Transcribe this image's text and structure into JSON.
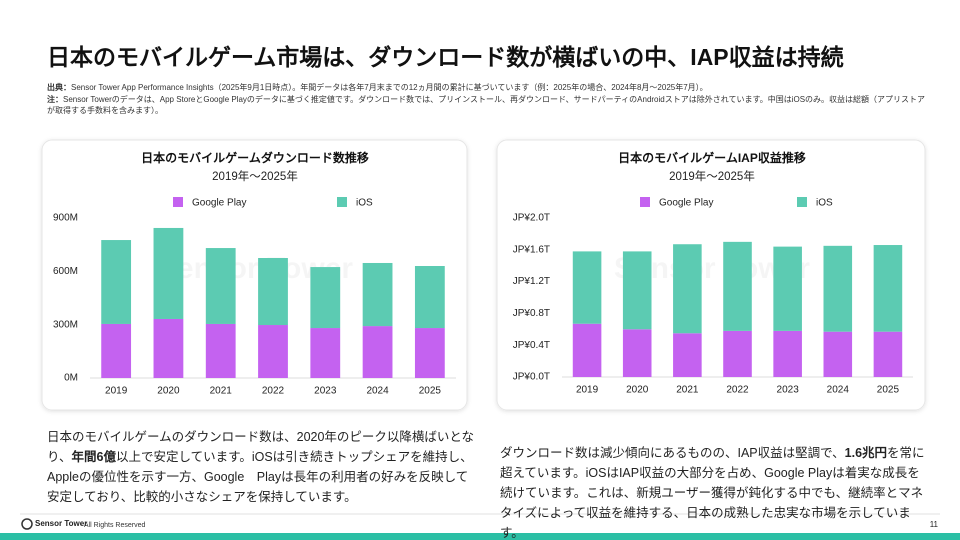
{
  "header": {
    "title": "日本のモバイルゲーム市場は、ダウンロード数が横ばいの中、IAP収益は持続",
    "source_label": "出典：",
    "source_text": "Sensor Tower App Performance Insights（2025年9月1日時点）。年間データは各年7月末までの12ヵ月間の累計に基づいています（例：2025年の場合、2024年8月～2025年7月）。",
    "note_label": "注：",
    "note_text": "Sensor Towerのデータは、App StoreとGoogle Playのデータに基づく推定値です。ダウンロード数では、プリインストール、再ダウンロード、サードパーティのAndroidストアは除外されています。中国はiOSのみ。収益は総額（アプリストアが取得する手数料を含みます）。"
  },
  "chart_data": [
    {
      "type": "bar",
      "stacked": true,
      "title": "日本のモバイルゲームダウンロード数推移",
      "subtitle": "2019年～2025年",
      "categories": [
        "2019",
        "2020",
        "2021",
        "2022",
        "2023",
        "2024",
        "2025"
      ],
      "series": [
        {
          "name": "Google Play",
          "color": "#c462f0",
          "values": [
            304,
            332,
            304,
            298,
            281,
            292,
            281
          ]
        },
        {
          "name": "iOS",
          "color": "#5ccbb2",
          "values": [
            472,
            512,
            427,
            377,
            343,
            355,
            349
          ]
        }
      ],
      "ylim": [
        0,
        900
      ],
      "yticks": [
        {
          "value": 0,
          "label": "0M"
        },
        {
          "value": 300,
          "label": "300M"
        },
        {
          "value": 600,
          "label": "600M"
        },
        {
          "value": 900,
          "label": "900M"
        }
      ],
      "grid": false
    },
    {
      "type": "bar",
      "stacked": true,
      "title": "日本のモバイルゲームIAP収益推移",
      "subtitle": "2019年～2025年",
      "categories": [
        "2019",
        "2020",
        "2021",
        "2022",
        "2023",
        "2024",
        "2025"
      ],
      "series": [
        {
          "name": "Google Play",
          "color": "#c462f0",
          "values": [
            0.67,
            0.6,
            0.55,
            0.58,
            0.58,
            0.57,
            0.57
          ]
        },
        {
          "name": "iOS",
          "color": "#5ccbb2",
          "values": [
            0.91,
            0.98,
            1.12,
            1.12,
            1.06,
            1.08,
            1.09
          ]
        }
      ],
      "ylim": [
        0,
        2.0
      ],
      "yticks": [
        {
          "value": 0,
          "label": "JP¥0.0T"
        },
        {
          "value": 0.4,
          "label": "JP¥0.4T"
        },
        {
          "value": 0.8,
          "label": "JP¥0.8T"
        },
        {
          "value": 1.2,
          "label": "JP¥1.2T"
        },
        {
          "value": 1.6,
          "label": "JP¥1.6T"
        },
        {
          "value": 2.0,
          "label": "JP¥2.0T"
        }
      ],
      "grid": false
    }
  ],
  "commentary": [
    [
      {
        "text": "日本のモバイルゲームのダウンロード数は、2020年のピーク以降横ばいとなり、",
        "bold": false
      },
      {
        "text": "年間6億",
        "bold": true
      },
      {
        "text": "以上で安定しています。iOSは引き続きトップシェアを維持し、Appleの優位性を示す一方、Google　Playは長年の利用者の好みを反映して安定しており、比較的小さなシェアを保持しています。",
        "bold": false
      }
    ],
    [
      {
        "text": "ダウンロード数は減少傾向にあるものの、IAP収益は堅調で、",
        "bold": false
      },
      {
        "text": "1.6兆円",
        "bold": true
      },
      {
        "text": "を常に超えています。iOSはIAP収益の大部分を占め、Google Playは着実な成長を続けています。これは、新規ユーザー獲得が鈍化する中でも、継続率とマネタイズによって収益を維持する、日本の成熟した忠実な市場を示しています。",
        "bold": false
      }
    ]
  ],
  "footer": {
    "brand": "Sensor Tower",
    "rights": "- All Rights Reserved",
    "page": "11"
  }
}
